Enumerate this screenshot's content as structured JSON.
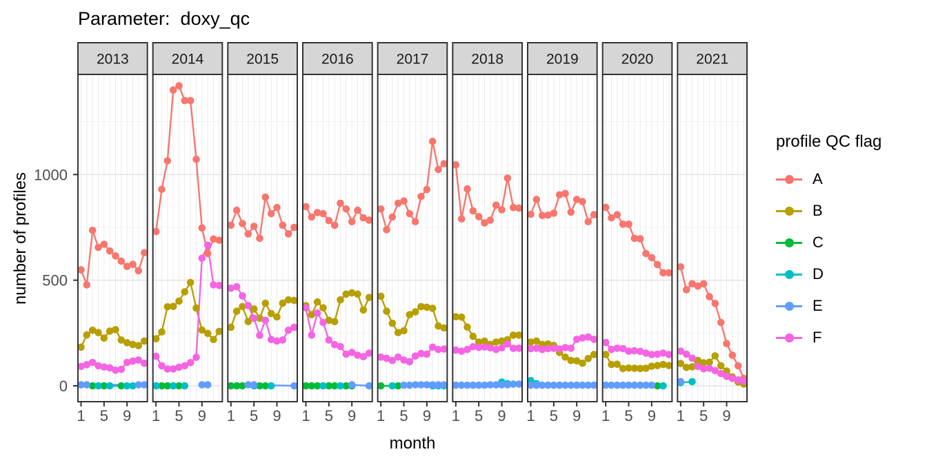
{
  "title": "Parameter:  doxy_qc",
  "chart_data": {
    "type": "line",
    "xlabel": "month",
    "ylabel": "number of profiles",
    "legend_title": "profile QC flag",
    "x_ticks": [
      1,
      5,
      9
    ],
    "y_ticks": [
      0,
      500,
      1000
    ],
    "y_minor_gridlines": [
      250,
      750,
      1250
    ],
    "ylim": [
      -75,
      1474
    ],
    "months": [
      1,
      2,
      3,
      4,
      5,
      6,
      7,
      8,
      9,
      10,
      11,
      12
    ],
    "grid": "on",
    "legend_position": "right",
    "colors": {
      "A": "#F8766D",
      "B": "#B79F00",
      "C": "#00BA38",
      "D": "#00BFC4",
      "E": "#619CFF",
      "F": "#F564E3"
    },
    "panel_border_color": "#333333",
    "strip_fill_color": "#D6D6D6",
    "tick_label_color": "#4D4D4D",
    "series_order": [
      "A",
      "B",
      "C",
      "D",
      "E",
      "F"
    ],
    "facets": [
      {
        "year": "2013",
        "series": {
          "A": [
            549,
            478,
            736,
            655,
            670,
            638,
            615,
            590,
            565,
            575,
            545,
            630
          ],
          "B": [
            183,
            241,
            263,
            252,
            226,
            259,
            266,
            217,
            204,
            196,
            190,
            212
          ],
          "C": [
            null,
            null,
            0,
            null,
            0,
            null,
            null,
            0,
            null,
            null,
            null,
            null
          ],
          "D": [
            null,
            null,
            null,
            0,
            null,
            0,
            null,
            null,
            0,
            0,
            null,
            null
          ],
          "E": [
            5,
            5,
            null,
            null,
            null,
            null,
            null,
            null,
            null,
            null,
            5,
            5
          ],
          "F": [
            92,
            100,
            111,
            95,
            89,
            85,
            74,
            78,
            111,
            117,
            122,
            107
          ]
        }
      },
      {
        "year": "2014",
        "series": {
          "A": [
            730,
            930,
            1065,
            1400,
            1420,
            1350,
            1350,
            1072,
            747,
            626,
            695,
            689
          ],
          "B": [
            223,
            255,
            374,
            376,
            401,
            445,
            489,
            368,
            264,
            248,
            219,
            258
          ],
          "C": [
            null,
            0,
            0,
            0,
            0,
            null,
            null,
            null,
            null,
            null,
            null,
            null
          ],
          "D": [
            0,
            null,
            null,
            0,
            null,
            0,
            null,
            null,
            null,
            null,
            null,
            null
          ],
          "E": [
            null,
            null,
            null,
            null,
            null,
            null,
            null,
            null,
            5,
            5,
            null,
            null
          ],
          "F": [
            140,
            95,
            80,
            80,
            88,
            95,
            110,
            135,
            604,
            666,
            478,
            475
          ]
        }
      },
      {
        "year": "2015",
        "series": {
          "A": [
            760,
            831,
            768,
            719,
            755,
            698,
            893,
            815,
            844,
            760,
            719,
            750
          ],
          "B": [
            277,
            353,
            375,
            304,
            364,
            320,
            391,
            342,
            326,
            391,
            407,
            404
          ],
          "C": [
            0,
            0,
            0,
            null,
            null,
            0,
            0,
            null,
            null,
            null,
            null,
            null
          ],
          "D": [
            null,
            null,
            null,
            null,
            0,
            null,
            null,
            0,
            null,
            null,
            null,
            null
          ],
          "E": [
            null,
            null,
            null,
            5,
            5,
            null,
            null,
            null,
            null,
            null,
            null,
            0
          ],
          "F": [
            462,
            469,
            426,
            380,
            320,
            239,
            310,
            219,
            212,
            217,
            263,
            277
          ]
        }
      },
      {
        "year": "2016",
        "series": {
          "A": [
            848,
            799,
            820,
            815,
            782,
            760,
            864,
            837,
            777,
            831,
            795,
            784
          ],
          "B": [
            380,
            337,
            397,
            369,
            310,
            304,
            407,
            434,
            440,
            434,
            359,
            418
          ],
          "C": [
            0,
            0,
            0,
            null,
            0,
            0,
            null,
            0,
            0,
            null,
            null,
            null
          ],
          "D": [
            null,
            null,
            null,
            0,
            null,
            null,
            0,
            null,
            null,
            null,
            null,
            null
          ],
          "E": [
            null,
            null,
            null,
            null,
            null,
            null,
            null,
            null,
            5,
            null,
            null,
            0
          ],
          "F": [
            369,
            240,
            345,
            300,
            217,
            195,
            186,
            150,
            158,
            145,
            138,
            155
          ]
        }
      },
      {
        "year": "2017",
        "series": {
          "A": [
            837,
            739,
            799,
            864,
            875,
            815,
            777,
            896,
            929,
            1157,
            1024,
            1051
          ],
          "B": [
            424,
            353,
            296,
            252,
            261,
            337,
            350,
            375,
            372,
            367,
            283,
            274
          ],
          "C": [
            0,
            null,
            null,
            0,
            null,
            null,
            null,
            null,
            null,
            null,
            null,
            null
          ],
          "D": [
            null,
            null,
            0,
            null,
            null,
            null,
            null,
            null,
            null,
            0,
            0,
            0
          ],
          "E": [
            null,
            null,
            null,
            null,
            3,
            3,
            5,
            5,
            5,
            5,
            5,
            5
          ],
          "F": [
            136,
            130,
            120,
            136,
            122,
            114,
            141,
            153,
            150,
            183,
            172,
            174
          ]
        }
      },
      {
        "year": "2018",
        "series": {
          "A": [
            1046,
            790,
            932,
            828,
            801,
            771,
            784,
            855,
            833,
            983,
            844,
            841
          ],
          "B": [
            327,
            325,
            278,
            234,
            207,
            212,
            196,
            207,
            212,
            218,
            240,
            240
          ],
          "C": [
            null,
            null,
            null,
            null,
            null,
            null,
            null,
            null,
            null,
            null,
            null,
            null
          ],
          "D": [
            null,
            null,
            null,
            null,
            null,
            null,
            null,
            null,
            18,
            10,
            8,
            null
          ],
          "E": [
            3,
            3,
            3,
            3,
            3,
            3,
            5,
            5,
            5,
            5,
            8,
            8
          ],
          "F": [
            169,
            164,
            172,
            185,
            182,
            184,
            180,
            172,
            180,
            198,
            177,
            178
          ]
        }
      },
      {
        "year": "2019",
        "series": {
          "A": [
            812,
            882,
            806,
            808,
            817,
            904,
            910,
            822,
            882,
            872,
            777,
            810
          ],
          "B": [
            207,
            212,
            196,
            198,
            191,
            158,
            136,
            120,
            118,
            107,
            129,
            148
          ],
          "C": [
            null,
            null,
            null,
            null,
            null,
            null,
            null,
            null,
            null,
            null,
            null,
            null
          ],
          "D": [
            25,
            10,
            null,
            null,
            null,
            null,
            null,
            null,
            null,
            null,
            null,
            null
          ],
          "E": [
            3,
            3,
            3,
            3,
            3,
            3,
            3,
            3,
            3,
            3,
            3,
            3
          ],
          "F": [
            176,
            178,
            172,
            176,
            178,
            174,
            181,
            178,
            220,
            227,
            231,
            220
          ]
        }
      },
      {
        "year": "2020",
        "series": {
          "A": [
            845,
            795,
            810,
            765,
            765,
            698,
            696,
            626,
            607,
            574,
            535,
            535
          ],
          "B": [
            148,
            101,
            102,
            82,
            84,
            83,
            82,
            83,
            93,
            96,
            101,
            96
          ],
          "C": [
            null,
            null,
            null,
            null,
            null,
            null,
            null,
            null,
            null,
            0,
            null,
            null
          ],
          "D": [
            null,
            null,
            null,
            null,
            null,
            null,
            null,
            null,
            null,
            null,
            0,
            null
          ],
          "E": [
            3,
            3,
            3,
            3,
            3,
            3,
            3,
            3,
            3,
            null,
            null,
            null
          ],
          "F": [
            205,
            172,
            178,
            176,
            164,
            166,
            163,
            155,
            148,
            150,
            155,
            148
          ]
        }
      },
      {
        "year": "2021",
        "series": {
          "A": [
            563,
            455,
            483,
            472,
            483,
            422,
            390,
            300,
            200,
            145,
            95,
            35
          ],
          "B": [
            106,
            87,
            90,
            120,
            109,
            112,
            142,
            95,
            70,
            42,
            18,
            8
          ],
          "C": [
            null,
            null,
            null,
            null,
            null,
            null,
            null,
            null,
            null,
            null,
            null,
            null
          ],
          "D": [
            15,
            null,
            20,
            null,
            null,
            null,
            null,
            null,
            null,
            null,
            null,
            null
          ],
          "E": [
            20,
            null,
            null,
            null,
            null,
            null,
            null,
            null,
            null,
            null,
            null,
            null
          ],
          "F": [
            164,
            150,
            131,
            92,
            81,
            83,
            72,
            58,
            45,
            35,
            28,
            22
          ]
        }
      }
    ]
  }
}
